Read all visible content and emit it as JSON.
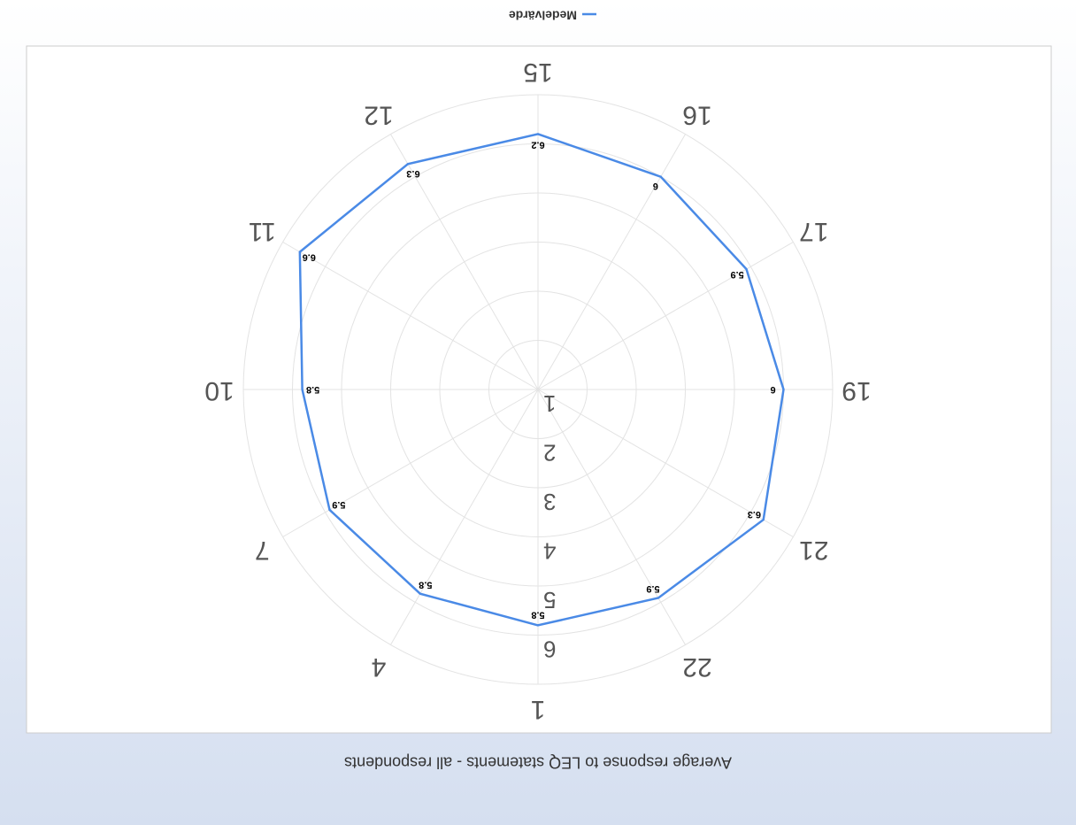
{
  "chart_data": {
    "type": "radar",
    "title": "Average response to LEQ statements - all respondents",
    "categories": [
      "1",
      "4",
      "7",
      "10",
      "11",
      "12",
      "15",
      "16",
      "17",
      "19",
      "21",
      "22"
    ],
    "series": [
      {
        "name": "Medelvärde",
        "color": "#4a8ae6",
        "values": [
          5.8,
          5.8,
          5.9,
          5.8,
          6.6,
          6.3,
          6.2,
          6,
          5.9,
          6,
          6.3,
          5.9
        ]
      }
    ],
    "ylim": [
      1,
      7
    ],
    "yticks": [
      1,
      2,
      3,
      4,
      5,
      6
    ],
    "grid": true,
    "legend": "bottom"
  }
}
